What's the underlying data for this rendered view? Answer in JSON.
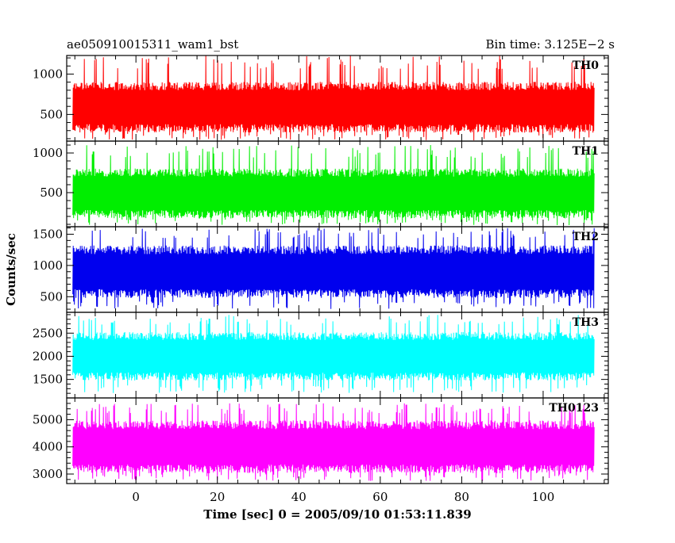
{
  "chart_data": {
    "type": "line",
    "title_left": "ae050910015311_wam1_bst",
    "title_right": "Bin time: 3.125E−2 s",
    "xlabel": "Time [sec] 0 = 2005/09/10 01:53:11.839",
    "ylabel": "Counts/sec",
    "xlim": [
      -17,
      116
    ],
    "data_x_range": [
      -15.5,
      112.5
    ],
    "x_ticks": [
      0,
      20,
      40,
      60,
      80,
      100
    ],
    "panels": [
      {
        "name": "TH0",
        "color": "#ff0000",
        "ylim": [
          170,
          1230
        ],
        "y_ticks": [
          500,
          1000
        ],
        "typical_range": [
          380,
          800
        ],
        "extreme_range": [
          180,
          1230
        ]
      },
      {
        "name": "TH1",
        "color": "#00ee00",
        "ylim": [
          70,
          1150
        ],
        "y_ticks": [
          500,
          1000
        ],
        "typical_range": [
          280,
          700
        ],
        "extreme_range": [
          90,
          1100
        ]
      },
      {
        "name": "TH2",
        "color": "#0000ee",
        "ylim": [
          250,
          1620
        ],
        "y_ticks": [
          500,
          1000,
          1500
        ],
        "typical_range": [
          620,
          1180
        ],
        "extreme_range": [
          300,
          1600
        ]
      },
      {
        "name": "TH3",
        "color": "#00ffff",
        "ylim": [
          1100,
          2950
        ],
        "y_ticks": [
          1500,
          2000,
          2500
        ],
        "typical_range": [
          1650,
          2350
        ],
        "extreme_range": [
          1200,
          2900
        ]
      },
      {
        "name": "TH0123",
        "color": "#ff00ff",
        "ylim": [
          2650,
          5800
        ],
        "y_ticks": [
          3000,
          4000,
          5000
        ],
        "typical_range": [
          3350,
          4650
        ],
        "extreme_range": [
          2750,
          5600
        ]
      }
    ]
  }
}
